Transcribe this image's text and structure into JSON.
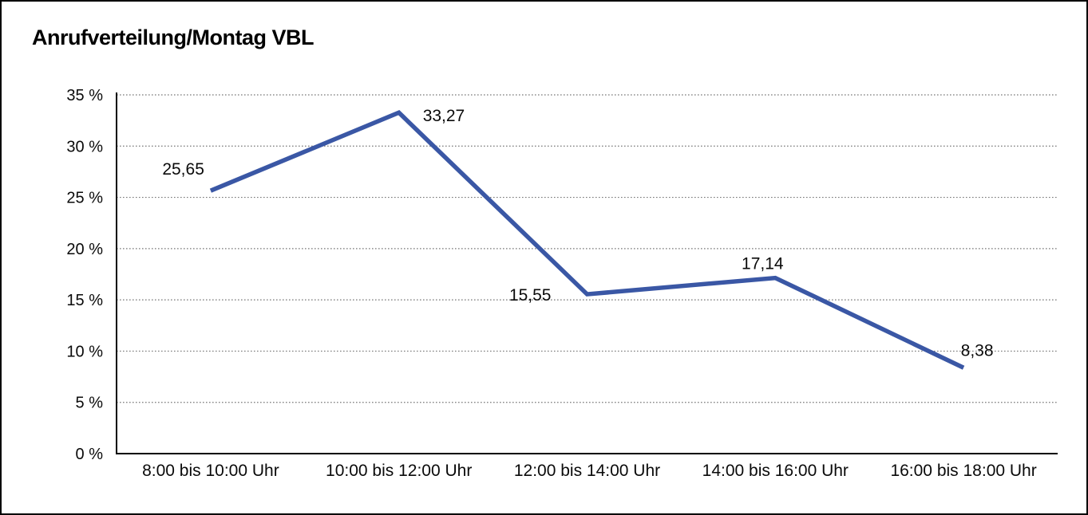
{
  "page": {
    "background_color": "#FFFFFF",
    "border_color": "#000000"
  },
  "chart_data": {
    "type": "line",
    "title": "Anrufverteilung/Montag VBL",
    "categories": [
      "8:00 bis 10:00 Uhr",
      "10:00 bis 12:00 Uhr",
      "12:00 bis 14:00 Uhr",
      "14:00 bis 16:00 Uhr",
      "16:00 bis 18:00 Uhr"
    ],
    "values": [
      25.65,
      33.27,
      15.55,
      17.14,
      8.38
    ],
    "value_labels": [
      "25,65",
      "33,27",
      "15,55",
      "17,14",
      "8,38"
    ],
    "unit": "%",
    "xlabel": "",
    "ylabel": "",
    "ylim": [
      0,
      35
    ],
    "ytick_step": 5,
    "ytick_labels": [
      "0 %",
      "5 %",
      "10 %",
      "15 %",
      "20 %",
      "25 %",
      "30 %",
      "35 %"
    ],
    "grid": "horizontal-dotted",
    "legend": "none",
    "marker": "none"
  },
  "colors": {
    "line": "#3A57A5",
    "grid": "#777777",
    "axis": "#000000",
    "text": "#0A0A0A"
  }
}
